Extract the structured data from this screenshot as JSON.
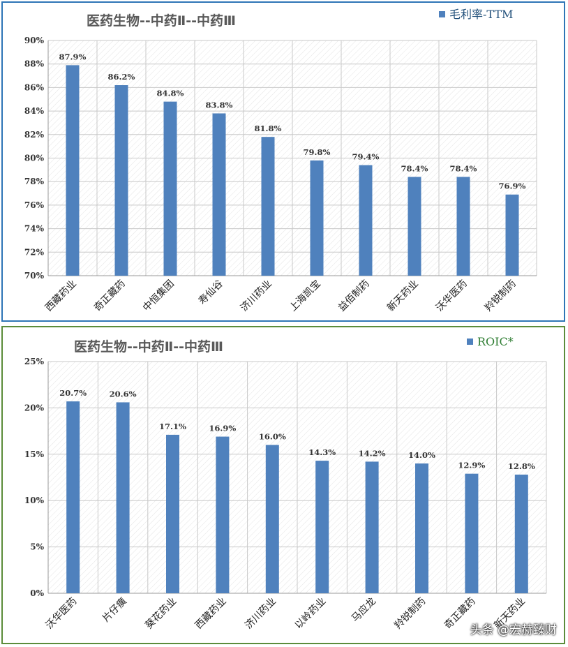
{
  "chart_data": [
    {
      "type": "bar",
      "title": "医药生物--中药Ⅱ--中药Ⅲ",
      "categories": [
        "西藏药业",
        "奇正藏药",
        "中恒集团",
        "寿仙谷",
        "济川药业",
        "上海凯宝",
        "益佰制药",
        "新天药业",
        "沃华医药",
        "羚锐制药"
      ],
      "series": [
        {
          "name": "毛利率-TTM",
          "values": [
            87.9,
            86.2,
            84.8,
            83.8,
            81.8,
            79.8,
            79.4,
            78.4,
            78.4,
            76.9
          ]
        }
      ],
      "data_labels": [
        "87.9%",
        "86.2%",
        "84.8%",
        "83.8%",
        "81.8%",
        "79.8%",
        "79.4%",
        "78.4%",
        "78.4%",
        "76.9%"
      ],
      "yticks": [
        "70%",
        "72%",
        "74%",
        "76%",
        "78%",
        "80%",
        "82%",
        "84%",
        "86%",
        "88%",
        "90%"
      ],
      "ylim": [
        70,
        90
      ],
      "grid": true,
      "legend_position": "top-right",
      "bar_color": "#4f81bd",
      "legend_text_color": "#1f4e79"
    },
    {
      "type": "bar",
      "title": "医药生物--中药Ⅱ--中药Ⅲ",
      "categories": [
        "沃华医药",
        "片仔癀",
        "葵花药业",
        "西藏药业",
        "济川药业",
        "以岭药业",
        "马应龙",
        "羚锐制药",
        "奇正藏药",
        "新天药业"
      ],
      "series": [
        {
          "name": "ROIC*",
          "values": [
            20.7,
            20.6,
            17.1,
            16.9,
            16.0,
            14.3,
            14.2,
            14.0,
            12.9,
            12.8
          ]
        }
      ],
      "data_labels": [
        "20.7%",
        "20.6%",
        "17.1%",
        "16.9%",
        "16.0%",
        "14.3%",
        "14.2%",
        "14.0%",
        "12.9%",
        "12.8%"
      ],
      "yticks": [
        "0%",
        "5%",
        "10%",
        "15%",
        "20%",
        "25%"
      ],
      "ylim": [
        0,
        25
      ],
      "grid": true,
      "legend_position": "top-right",
      "bar_color": "#4f81bd",
      "legend_text_color": "#2e7d32"
    }
  ],
  "watermark": "头条 @宏赫臻财"
}
